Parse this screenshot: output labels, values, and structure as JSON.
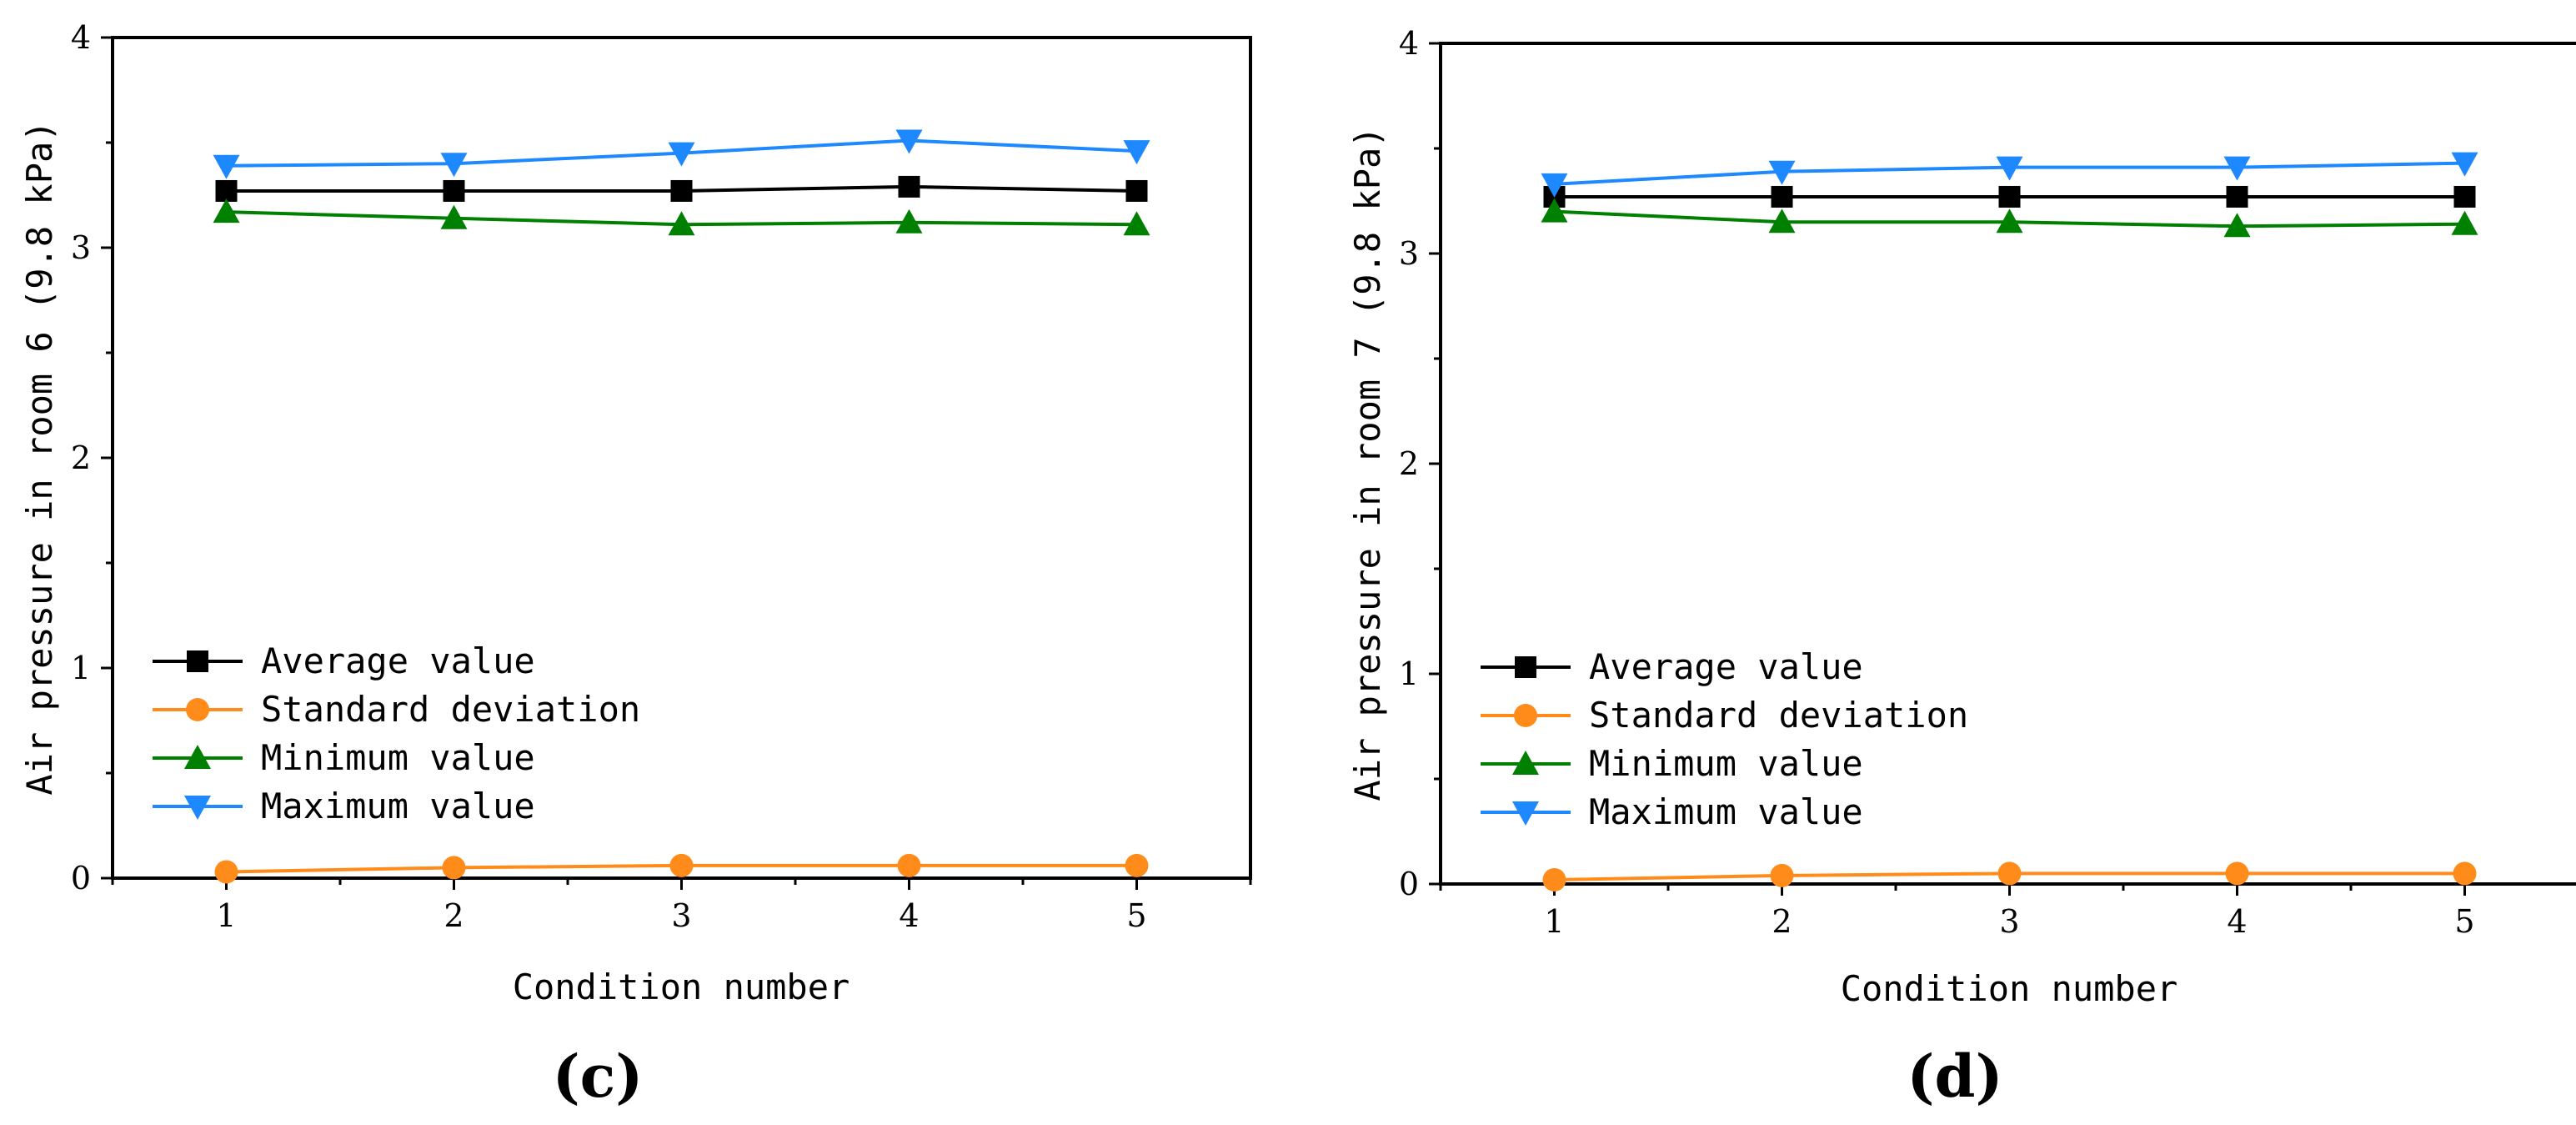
{
  "chart_data": [
    {
      "type": "line",
      "panel_label": "(c)",
      "xlabel": "Condition number",
      "ylabel": "Air pressure in room 6 (9.8 kPa)",
      "x": [
        1,
        2,
        3,
        4,
        5
      ],
      "xticks": [
        "1",
        "2",
        "3",
        "4",
        "5"
      ],
      "yticks": [
        "0",
        "1",
        "2",
        "3",
        "4"
      ],
      "xlim": [
        0.5,
        5.5
      ],
      "ylim": [
        0,
        4
      ],
      "grid": false,
      "legend_position": "bottom-left",
      "series": [
        {
          "name": "Average value",
          "color": "#000000",
          "marker": "square",
          "values": [
            3.27,
            3.27,
            3.27,
            3.29,
            3.27
          ]
        },
        {
          "name": "Standard deviation",
          "color": "#FF8C1A",
          "marker": "circle",
          "values": [
            0.03,
            0.05,
            0.06,
            0.06,
            0.06
          ]
        },
        {
          "name": "Minimum value",
          "color": "#008000",
          "marker": "triangle-up",
          "values": [
            3.17,
            3.14,
            3.11,
            3.12,
            3.11
          ]
        },
        {
          "name": "Maximum value",
          "color": "#1E88FF",
          "marker": "triangle-down",
          "values": [
            3.39,
            3.4,
            3.45,
            3.51,
            3.46
          ]
        }
      ]
    },
    {
      "type": "line",
      "panel_label": "(d)",
      "xlabel": "Condition number",
      "ylabel": "Air pressure in room 7 (9.8 kPa)",
      "x": [
        1,
        2,
        3,
        4,
        5
      ],
      "xticks": [
        "1",
        "2",
        "3",
        "4",
        "5"
      ],
      "yticks": [
        "0",
        "1",
        "2",
        "3",
        "4"
      ],
      "xlim": [
        0.5,
        5.5
      ],
      "ylim": [
        0,
        4
      ],
      "grid": false,
      "legend_position": "bottom-left",
      "series": [
        {
          "name": "Average value",
          "color": "#000000",
          "marker": "square",
          "values": [
            3.27,
            3.27,
            3.27,
            3.27,
            3.27
          ]
        },
        {
          "name": "Standard deviation",
          "color": "#FF8C1A",
          "marker": "circle",
          "values": [
            0.02,
            0.04,
            0.05,
            0.05,
            0.05
          ]
        },
        {
          "name": "Minimum value",
          "color": "#008000",
          "marker": "triangle-up",
          "values": [
            3.2,
            3.15,
            3.15,
            3.13,
            3.14
          ]
        },
        {
          "name": "Maximum value",
          "color": "#1E88FF",
          "marker": "triangle-down",
          "values": [
            3.33,
            3.39,
            3.41,
            3.41,
            3.43
          ]
        }
      ]
    }
  ]
}
